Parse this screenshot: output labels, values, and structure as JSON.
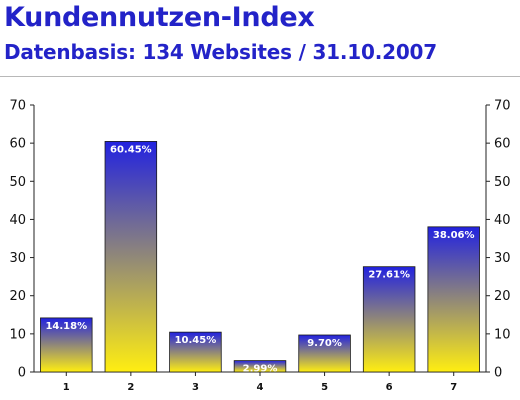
{
  "header": {
    "title": "Kundennutzen-Index",
    "subtitle": "Datenbasis: 134 Websites / 31.10.2007"
  },
  "colors": {
    "title": "#2323c8",
    "bar_top": "#2222e0",
    "bar_bottom": "#ffee11"
  },
  "chart_data": {
    "type": "bar",
    "categories": [
      "1",
      "2",
      "3",
      "4",
      "5",
      "6",
      "7"
    ],
    "values": [
      14.18,
      60.45,
      10.45,
      2.99,
      9.7,
      27.61,
      38.06
    ],
    "data_labels": [
      "14.18%",
      "60.45%",
      "10.45%",
      "2.99%",
      "9.70%",
      "27.61%",
      "38.06%"
    ],
    "ylim": [
      0,
      70
    ],
    "yticks": [
      "0",
      "10",
      "20",
      "30",
      "40",
      "50",
      "60",
      "70"
    ],
    "ytick_values": [
      0,
      10,
      20,
      30,
      40,
      50,
      60,
      70
    ],
    "y_axes": "left and right",
    "grid": false,
    "legend": "none"
  }
}
